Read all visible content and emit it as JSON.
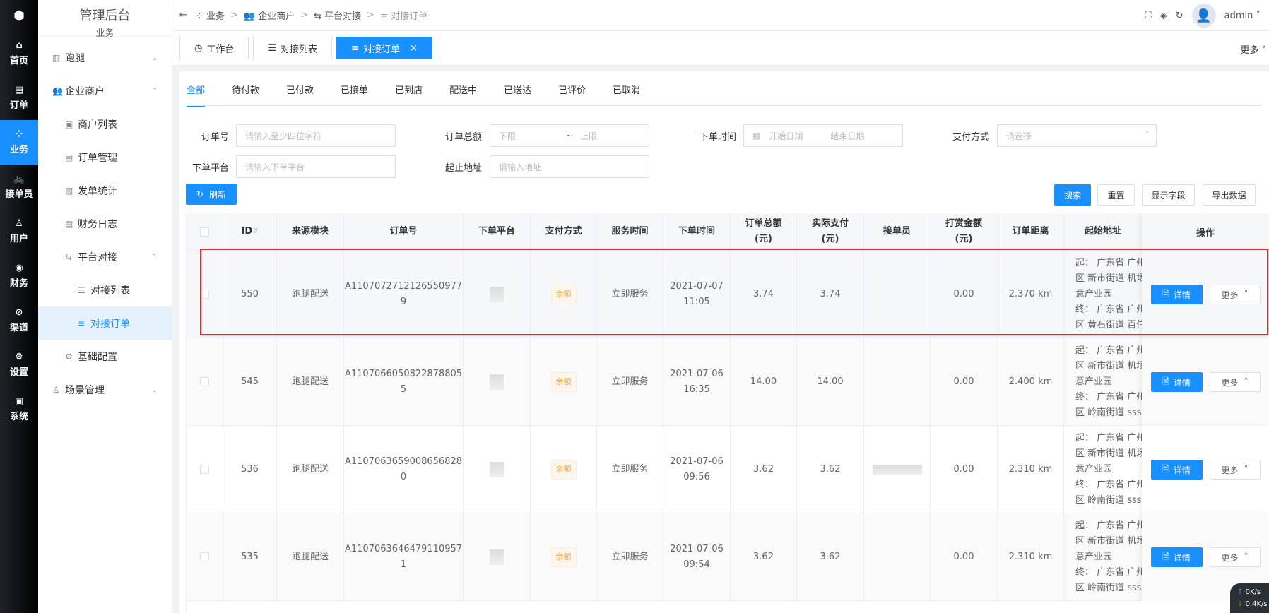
{
  "rail": {
    "items": [
      {
        "icon": "home-icon",
        "label": "首页"
      },
      {
        "icon": "order-icon",
        "label": "订单"
      },
      {
        "icon": "business-icon",
        "label": "业务"
      },
      {
        "icon": "rider-icon",
        "label": "接单员"
      },
      {
        "icon": "user-icon",
        "label": "用户"
      },
      {
        "icon": "finance-icon",
        "label": "财务"
      },
      {
        "icon": "channel-icon",
        "label": "渠道"
      },
      {
        "icon": "settings-icon",
        "label": "设置"
      },
      {
        "icon": "system-icon",
        "label": "系统"
      }
    ],
    "active": "业务"
  },
  "menu": {
    "title": "管理后台",
    "subtitle": "业务",
    "items": [
      {
        "label": "跑腿",
        "level": 1,
        "arrow": "⌄"
      },
      {
        "label": "企业商户",
        "level": 1,
        "arrow": "⌃"
      },
      {
        "label": "商户列表",
        "level": 2
      },
      {
        "label": "订单管理",
        "level": 2
      },
      {
        "label": "发单统计",
        "level": 2
      },
      {
        "label": "财务日志",
        "level": 2
      },
      {
        "label": "平台对接",
        "level": 2,
        "arrow": "⌃"
      },
      {
        "label": "对接列表",
        "level": 3
      },
      {
        "label": "对接订单",
        "level": 3,
        "active": true
      },
      {
        "label": "基础配置",
        "level": 2
      },
      {
        "label": "场景管理",
        "level": 1,
        "arrow": "⌄"
      }
    ]
  },
  "breadcrumb": [
    "业务",
    "企业商户",
    "平台对接",
    "对接订单"
  ],
  "header": {
    "user": "admin"
  },
  "tabs": [
    {
      "label": "工作台"
    },
    {
      "label": "对接列表"
    },
    {
      "label": "对接订单",
      "active": true
    }
  ],
  "tabs_more": "更多",
  "status_tabs": [
    "全部",
    "待付款",
    "已付款",
    "已接单",
    "已到店",
    "配送中",
    "已送达",
    "已评价",
    "已取消"
  ],
  "filters": {
    "order_no": {
      "label": "订单号",
      "placeholder": "请输入至少四位字符"
    },
    "amount": {
      "label": "订单总额",
      "min": "下限",
      "sep": "~",
      "max": "上限"
    },
    "time": {
      "label": "下单时间",
      "start": "开始日期",
      "end": "结束日期"
    },
    "pay": {
      "label": "支付方式",
      "placeholder": "请选择"
    },
    "platform": {
      "label": "下单平台",
      "placeholder": "请输入下单平台"
    },
    "address": {
      "label": "起止地址",
      "placeholder": "请输入地址"
    }
  },
  "buttons": {
    "refresh": "刷新",
    "search": "搜索",
    "reset": "重置",
    "fields": "显示字段",
    "export": "导出数据"
  },
  "table": {
    "columns": [
      "ID",
      "来源模块",
      "订单号",
      "下单平台",
      "支付方式",
      "服务时间",
      "下单时间",
      "订单总额\n(元)",
      "实际支付\n(元)",
      "接单员",
      "打赏金额\n(元)",
      "订单距离",
      "起始地址",
      "操作"
    ],
    "rows": [
      {
        "id": "550",
        "source": "跑腿配送",
        "order_no": "A1107072712126550977\n9",
        "pay": "余额",
        "service": "立即服务",
        "time": "2021-07-07\n11:05",
        "total": "3.74",
        "paid": "3.74",
        "tip": "0.00",
        "distance": "2.370 km",
        "address": [
          "起：  广东省 广州",
          "区 新市街道 机场",
          "意产业园",
          "终：  广东省 广州",
          "区 黄石街道 百信"
        ]
      },
      {
        "id": "545",
        "source": "跑腿配送",
        "order_no": "A1107066050822878805\n5",
        "pay": "余额",
        "service": "立即服务",
        "time": "2021-07-06\n16:35",
        "total": "14.00",
        "paid": "14.00",
        "tip": "0.00",
        "distance": "2.400 km",
        "address": [
          "起：  广东省 广州",
          "区 新市街道 机场",
          "意产业园",
          "终：  广东省 广州",
          "区 岭南街道 sss"
        ]
      },
      {
        "id": "536",
        "source": "跑腿配送",
        "order_no": "A1107063659008656828\n0",
        "pay": "余额",
        "service": "立即服务",
        "time": "2021-07-06\n09:56",
        "total": "3.62",
        "paid": "3.62",
        "tip": "0.00",
        "distance": "2.310 km",
        "address": [
          "起：  广东省 广州",
          "区 新市街道 机场",
          "意产业园",
          "终：  广东省 广州",
          "区 岭南街道 sss"
        ]
      },
      {
        "id": "535",
        "source": "跑腿配送",
        "order_no": "A1107063646479110957\n1",
        "pay": "余额",
        "service": "立即服务",
        "time": "2021-07-06\n09:54",
        "total": "3.62",
        "paid": "3.62",
        "tip": "0.00",
        "distance": "2.310 km",
        "address": [
          "起：  广东省 广州",
          "区 新市街道 机场",
          "意产业园",
          "终：  广东省 广州",
          "区 岭南街道 sss"
        ]
      }
    ],
    "detail_label": "详情",
    "more_label": "更多"
  },
  "net": {
    "up": "0K/s",
    "down": "0.4K/s"
  },
  "colors": {
    "primary": "#1890ff",
    "highlight": "#f52222",
    "tag": "#e6a23c"
  }
}
